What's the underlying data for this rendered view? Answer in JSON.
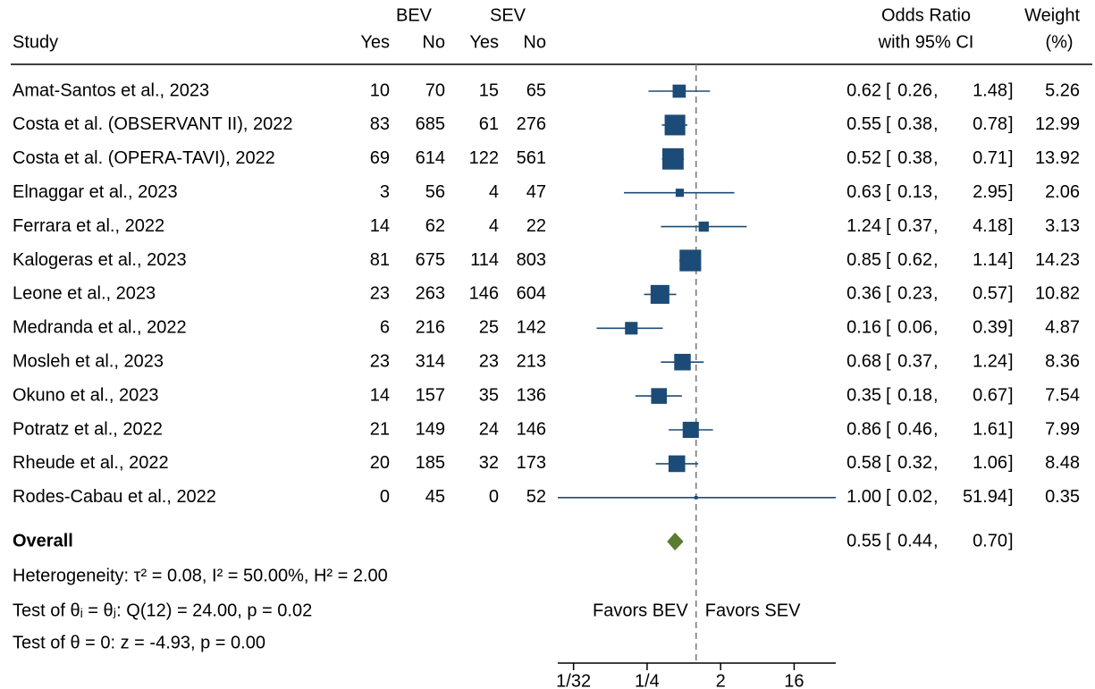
{
  "chart_data": {
    "type": "forest",
    "headers": {
      "study": "Study",
      "group1": "BEV",
      "group2": "SEV",
      "yes": "Yes",
      "no": "No",
      "effect_line1": "Odds Ratio",
      "effect_line2": "with 95% CI",
      "weight_line1": "Weight",
      "weight_line2": "(%)"
    },
    "studies": [
      "Amat-Santos et al., 2023",
      "Costa et al. (OBSERVANT II), 2022",
      "Costa et al. (OPERA-TAVI), 2022",
      "Elnaggar et al., 2023",
      "Ferrara et al., 2022",
      "Kalogeras et al., 2023",
      "Leone et al., 2023",
      "Medranda et al., 2022",
      "Mosleh et al., 2023",
      "Okuno et al., 2023",
      "Potratz et al., 2022",
      "Rheude et al., 2022",
      "Rodes-Cabau et al., 2022"
    ],
    "bev_yes": [
      10,
      83,
      69,
      3,
      14,
      81,
      23,
      6,
      23,
      14,
      21,
      20,
      0
    ],
    "bev_no": [
      70,
      685,
      614,
      56,
      62,
      675,
      263,
      216,
      314,
      157,
      149,
      185,
      45
    ],
    "sev_yes": [
      15,
      61,
      122,
      4,
      4,
      114,
      146,
      25,
      23,
      35,
      24,
      32,
      0
    ],
    "sev_no": [
      65,
      276,
      561,
      47,
      22,
      803,
      604,
      142,
      213,
      136,
      146,
      173,
      52
    ],
    "estimates": {
      "values": [
        0.62,
        0.55,
        0.52,
        0.63,
        1.24,
        0.85,
        0.36,
        0.16,
        0.68,
        0.35,
        0.86,
        0.58,
        1.0
      ],
      "value_labels": [
        "0.62",
        "0.55",
        "0.52",
        "0.63",
        "1.24",
        "0.85",
        "0.36",
        "0.16",
        "0.68",
        "0.35",
        "0.86",
        "0.58",
        "1.00"
      ]
    },
    "ci_low": [
      0.26,
      0.38,
      0.38,
      0.13,
      0.37,
      0.62,
      0.23,
      0.06,
      0.37,
      0.18,
      0.46,
      0.32,
      0.02
    ],
    "ci_high": [
      1.48,
      0.78,
      0.71,
      2.95,
      4.18,
      1.14,
      0.57,
      0.39,
      1.24,
      0.67,
      1.61,
      1.06,
      51.94
    ],
    "weights": [
      5.26,
      12.99,
      13.92,
      2.06,
      3.13,
      14.23,
      10.82,
      4.87,
      8.36,
      7.54,
      7.99,
      8.48,
      0.35
    ],
    "ci_punctuation": [
      "[",
      ",",
      "]"
    ],
    "overall": {
      "label": "Overall",
      "values": [
        0.55,
        0.44,
        0.7
      ],
      "value_labels": [
        "0.55",
        "0.44",
        "0.70"
      ]
    },
    "stats": [
      "Heterogeneity: τ² = 0.08, I² = 50.00%, H² = 2.00",
      "Test of θᵢ = θⱼ: Q(12) = 24.00, p = 0.02",
      "Test of θ = 0: z = -4.93, p = 0.00"
    ],
    "favors": [
      "Favors BEV",
      "Favors SEV"
    ],
    "reference_line": 1,
    "xscale": "log",
    "xlim": [
      0.02,
      51.94
    ],
    "xticks": [
      {
        "value": 0.03125,
        "label": "1/32"
      },
      {
        "value": 0.25,
        "label": "1/4"
      },
      2,
      16
    ],
    "marker_color": "#1d4b77",
    "diamond_color": "#5b7b2f"
  }
}
